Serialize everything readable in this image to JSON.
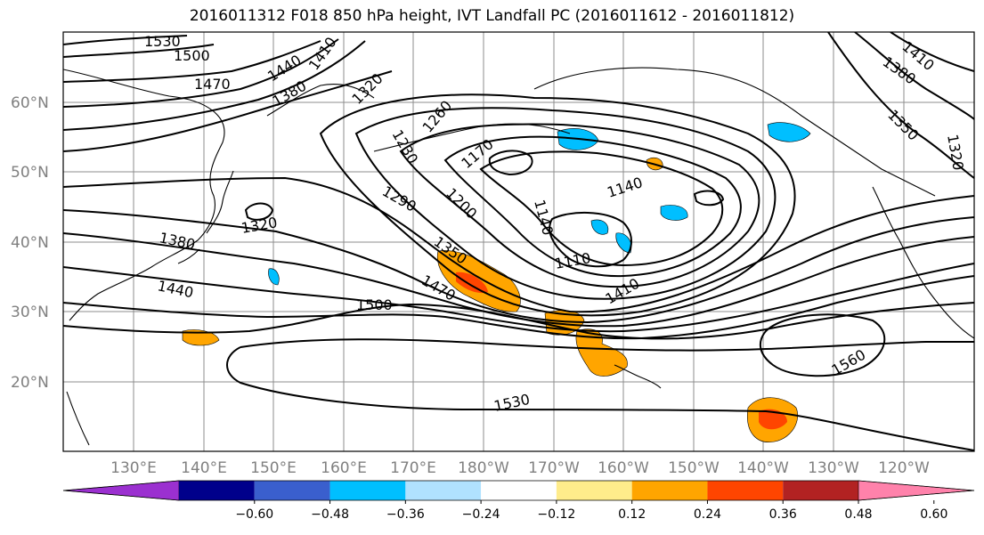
{
  "title": "2016011312 F018 850 hPa height, IVT Landfall PC (2016011612 - 2016011812)",
  "lat_labels": [
    "60°N",
    "50°N",
    "40°N",
    "30°N",
    "20°N"
  ],
  "lon_labels": [
    "130°E",
    "140°E",
    "150°E",
    "160°E",
    "170°E",
    "180°W",
    "170°W",
    "160°W",
    "150°W",
    "140°W",
    "130°W",
    "120°W"
  ],
  "contour_labels": [
    "1530",
    "1500",
    "1470",
    "1440",
    "1410",
    "1380",
    "1320",
    "1260",
    "1230",
    "1290",
    "1200",
    "1170",
    "1140",
    "1140",
    "1110",
    "1350",
    "1380",
    "1440",
    "1470",
    "1500",
    "1410",
    "1530",
    "1560",
    "1410",
    "1380",
    "1350",
    "1320",
    "1320"
  ],
  "colorbar": {
    "ticks": [
      "−0.60",
      "−0.48",
      "−0.36",
      "−0.24",
      "−0.12",
      "0.12",
      "0.24",
      "0.36",
      "0.48",
      "0.60"
    ],
    "colors": [
      "#9b30d0",
      "#00008b",
      "#3a5fcd",
      "#00bfff",
      "#b0e2ff",
      "#ffffff",
      "#ffec8b",
      "#ffa500",
      "#ff4500",
      "#b22222",
      "#ff82ab"
    ]
  }
}
